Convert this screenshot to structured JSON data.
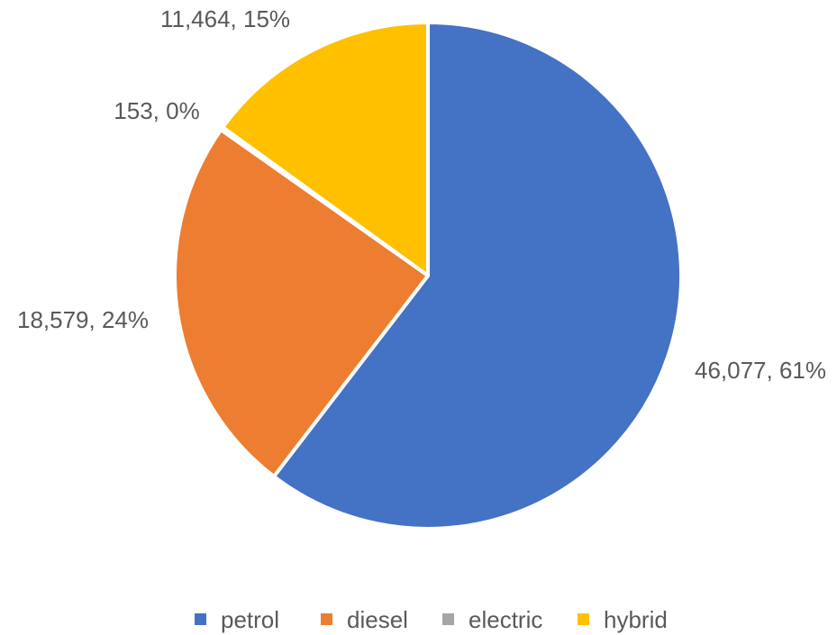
{
  "chart_data": {
    "type": "pie",
    "title": "",
    "series": [
      {
        "name": "",
        "slices": [
          {
            "label": "petrol",
            "value": 46077,
            "percent": "61%",
            "data_label": "46,077, 61%",
            "color": "#4472C4"
          },
          {
            "label": "diesel",
            "value": 18579,
            "percent": "24%",
            "data_label": "18,579, 24%",
            "color": "#ED7D31"
          },
          {
            "label": "electric",
            "value": 153,
            "percent": "0%",
            "data_label": "153, 0%",
            "color": "#A5A5A5"
          },
          {
            "label": "hybrid",
            "value": 11464,
            "percent": "15%",
            "data_label": "11,464, 15%",
            "color": "#FFC000"
          }
        ]
      }
    ],
    "legend": {
      "position": "bottom",
      "entries": [
        "petrol",
        "diesel",
        "electric",
        "hybrid"
      ]
    },
    "start_angle": "12 o'clock",
    "direction": "clockwise"
  }
}
